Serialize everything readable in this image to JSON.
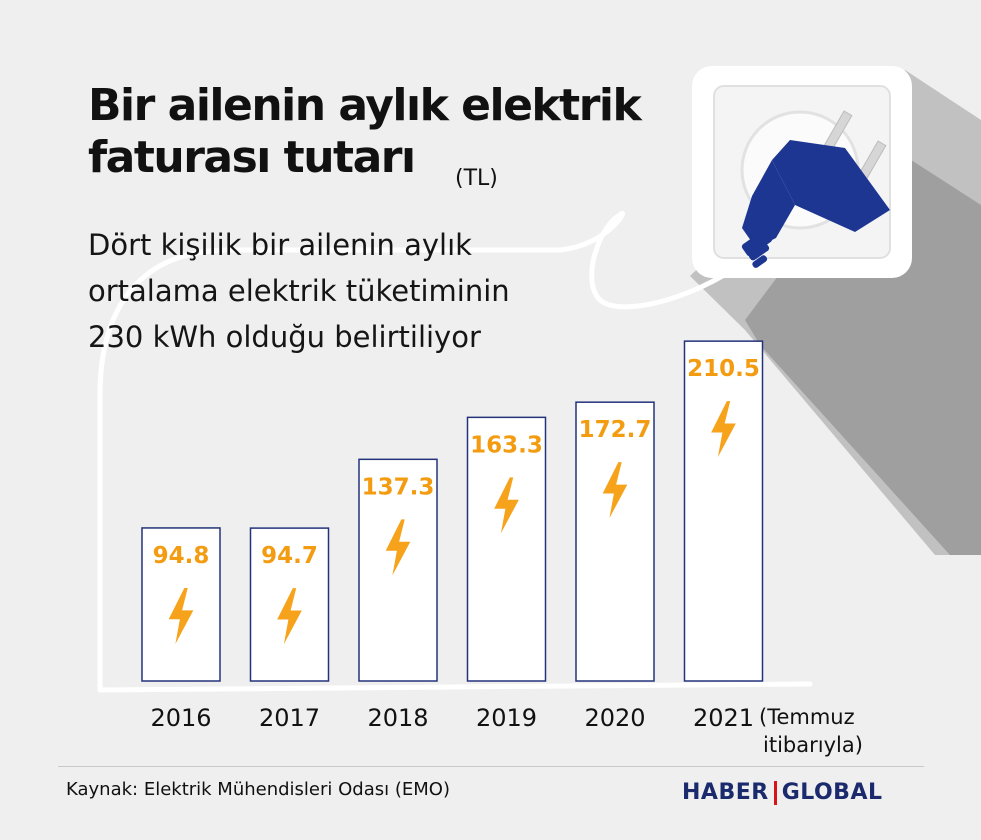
{
  "title_line1": "Bir ailenin aylık elektrik",
  "title_line2": "faturası tutarı",
  "unit": "(TL)",
  "subtitle_lines": [
    "Dört kişilik bir ailenin aylık",
    "ortalama elektrik tüketiminin",
    "230 kWh olduğu belirtiliyor"
  ],
  "footer": {
    "source": "Kaynak: Elektrik Mühendisleri Odası (EMO)",
    "brand_left": "HABER",
    "brand_right": "GLOBAL"
  },
  "annotation_lines": [
    "(Temmuz",
    "itibarıyla)"
  ],
  "colors": {
    "bar_stroke": "#23337a",
    "value_label": "#f39c12",
    "bolt": "#f7a21b",
    "plug": "#1d3692"
  },
  "chart_data": {
    "type": "bar",
    "categories": [
      "2016",
      "2017",
      "2018",
      "2019",
      "2020",
      "2021"
    ],
    "values": [
      94.8,
      94.7,
      137.3,
      163.3,
      172.7,
      210.5
    ],
    "value_labels": [
      "94.8",
      "94.7",
      "137.3",
      "163.3",
      "172.7",
      "210.5"
    ],
    "title": "Bir ailenin aylık elektrik faturası tutarı",
    "ylabel": "",
    "xlabel": "",
    "ylim": [
      0,
      230
    ],
    "grid": false,
    "legend": "none",
    "bar_icon": "lightning-bolt-icon"
  }
}
